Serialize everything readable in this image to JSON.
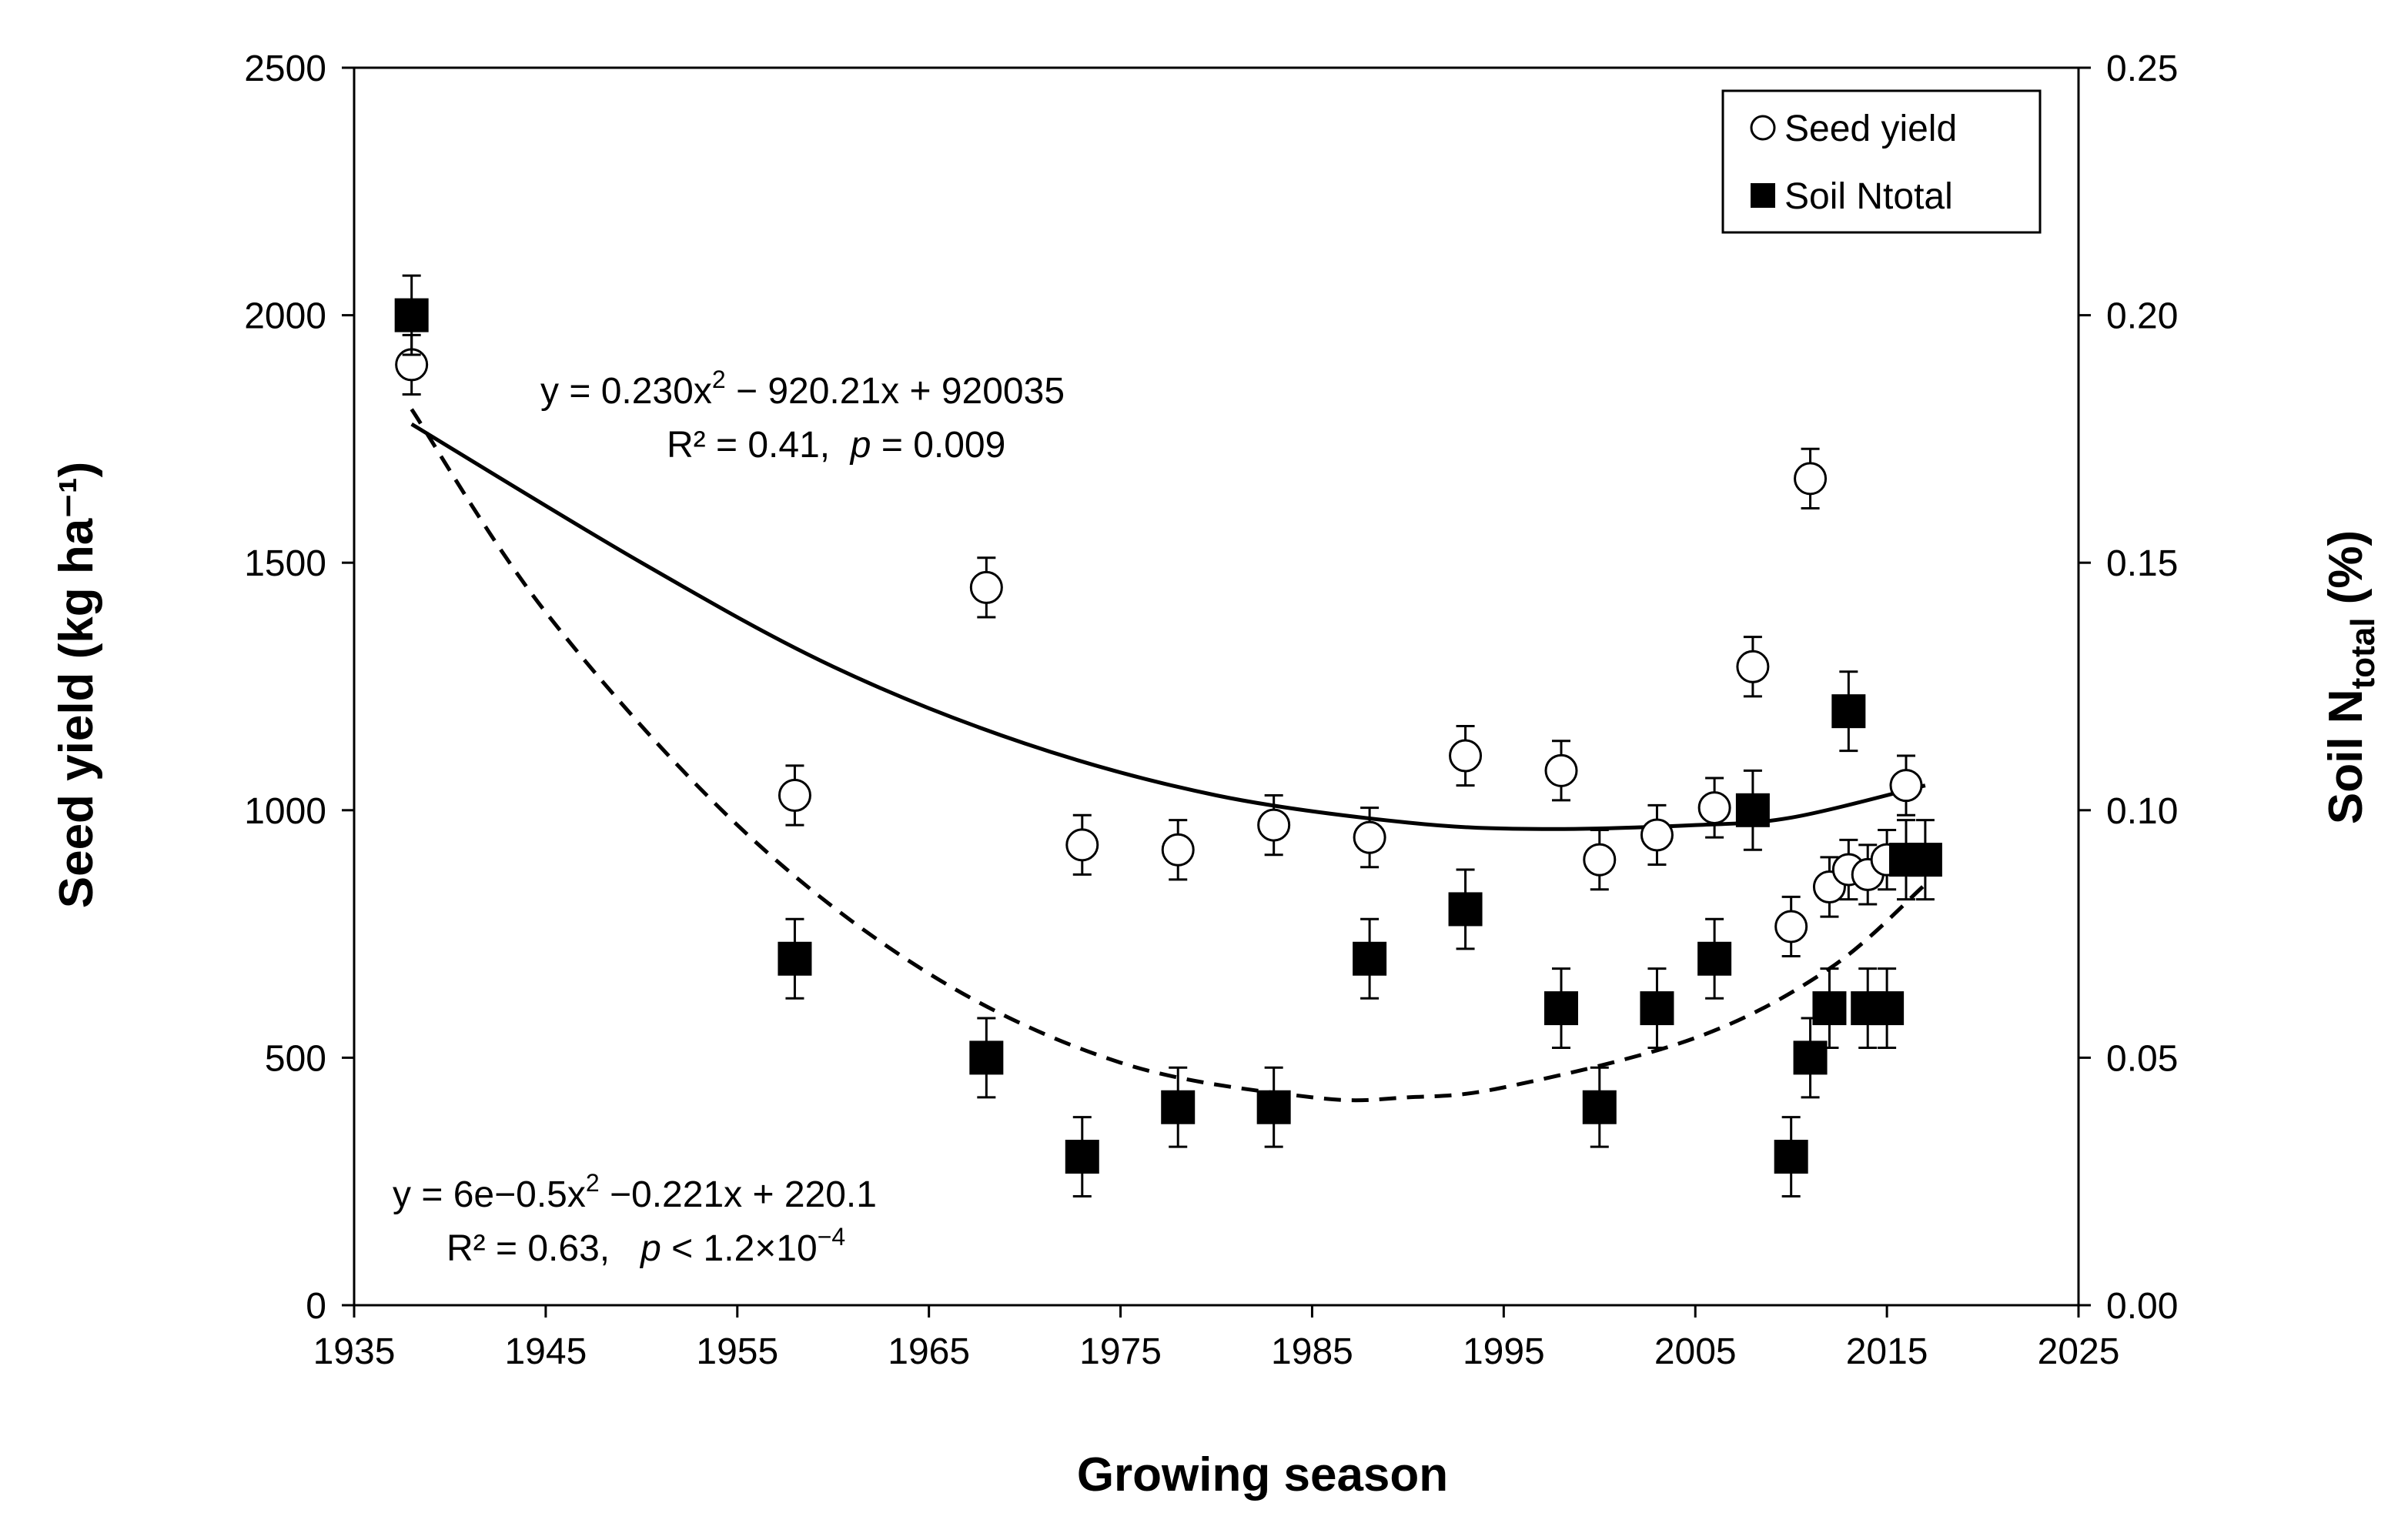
{
  "chart_data": {
    "type": "scatter",
    "xlabel": "Growing season",
    "ylabel_left": "Seed yield (kg ha⁻¹)",
    "ylabel_right": {
      "prefix": "Soil N",
      "subscript": "total",
      "suffix": " (%)"
    },
    "xlim": [
      1935,
      2025
    ],
    "ylim_left": [
      0,
      2500
    ],
    "ylim_right": [
      0.0,
      0.25
    ],
    "x_ticks": [
      "1935",
      "1945",
      "1955",
      "1965",
      "1975",
      "1985",
      "1995",
      "2005",
      "2015",
      "2025"
    ],
    "y_left_ticks": [
      "0",
      "500",
      "1000",
      "1500",
      "2000",
      "2500"
    ],
    "y_right_ticks": [
      "0.00",
      "0.05",
      "0.10",
      "0.15",
      "0.20",
      "0.25"
    ],
    "legend_position": "top-right",
    "grid": false,
    "series": [
      {
        "name": "Seed yield",
        "marker": "open-circle",
        "axis": "left",
        "x": [
          1938,
          1958,
          1968,
          1973,
          1978,
          1983,
          1988,
          1993,
          1998,
          2000,
          2003,
          2006,
          2008,
          2010,
          2011,
          2012,
          2013,
          2014,
          2015,
          2016
        ],
        "y": [
          1900,
          1030,
          1450,
          930,
          920,
          970,
          945,
          1110,
          1080,
          900,
          950,
          1005,
          1290,
          765,
          1670,
          845,
          880,
          870,
          900,
          1050
        ],
        "error": [
          60,
          60,
          60,
          60,
          60,
          60,
          60,
          60,
          60,
          60,
          60,
          60,
          60,
          60,
          60,
          60,
          60,
          60,
          60,
          60
        ]
      },
      {
        "name": "Soil Ntotal",
        "marker": "filled-square",
        "axis": "right",
        "x": [
          1938,
          1958,
          1968,
          1973,
          1978,
          1983,
          1988,
          1993,
          1998,
          2000,
          2003,
          2006,
          2008,
          2010,
          2011,
          2012,
          2013,
          2014,
          2015,
          2016,
          2017
        ],
        "y": [
          0.2,
          0.07,
          0.05,
          0.03,
          0.04,
          0.04,
          0.07,
          0.08,
          0.06,
          0.04,
          0.06,
          0.07,
          0.1,
          0.03,
          0.05,
          0.06,
          0.12,
          0.06,
          0.06,
          0.09,
          0.09
        ],
        "error": [
          0.008,
          0.008,
          0.008,
          0.008,
          0.008,
          0.008,
          0.008,
          0.008,
          0.008,
          0.008,
          0.008,
          0.008,
          0.008,
          0.008,
          0.008,
          0.008,
          0.008,
          0.008,
          0.008,
          0.008,
          0.008
        ]
      }
    ],
    "fits": [
      {
        "series": "Seed yield",
        "style": "solid",
        "x_range": [
          1938,
          2017
        ],
        "points": [
          [
            1938,
            1780
          ],
          [
            1950,
            1500
          ],
          [
            1960,
            1290
          ],
          [
            1970,
            1135
          ],
          [
            1980,
            1030
          ],
          [
            1990,
            975
          ],
          [
            1997,
            962
          ],
          [
            2005,
            970
          ],
          [
            2010,
            985
          ],
          [
            2017,
            1050
          ]
        ],
        "equation": {
          "main": "y = 0.230x",
          "sup": "2",
          "rest": " − 920.21x + 920035"
        },
        "stats": {
          "r2": "R² = 0.41,  ",
          "p_label": "p",
          "p_value": " = 0.009"
        }
      },
      {
        "series": "Soil Ntotal",
        "style": "dashed",
        "x_range": [
          1938,
          2017
        ],
        "points": [
          [
            1938,
            0.181
          ],
          [
            1945,
            0.14
          ],
          [
            1955,
            0.097
          ],
          [
            1965,
            0.067
          ],
          [
            1975,
            0.049
          ],
          [
            1985,
            0.042
          ],
          [
            1990,
            0.042
          ],
          [
            1995,
            0.044
          ],
          [
            2005,
            0.054
          ],
          [
            2012,
            0.068
          ],
          [
            2017,
            0.085
          ]
        ],
        "equation": {
          "main": "y = 6e−0.5x",
          "sup": "2",
          "rest": " −0.221x + 220.1"
        },
        "stats": {
          "r2": "R² = 0.63,   ",
          "p_label": "p",
          "p_value": " < 1.2×10",
          "p_exp": "−4"
        }
      }
    ]
  }
}
